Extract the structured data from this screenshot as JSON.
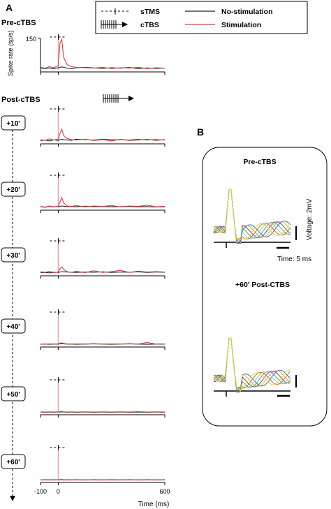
{
  "panel_a_label": "A",
  "panel_b_label": "B",
  "legend": {
    "stms_label": "sTMS",
    "ctbs_label": "cTBS",
    "no_stim_label": "No-stimulation",
    "stim_label": "Stimulation",
    "no_stim_color": "#222222",
    "stim_color": "#d0404a"
  },
  "pre_label": "Pre-cTBS",
  "post_label": "Post-cTBS",
  "ylabel": "Spike rate (sp/s)",
  "ytick": "150",
  "xtick_labels": [
    "-100",
    "0",
    "600"
  ],
  "xlabel": "Time (ms)",
  "time_boxes": [
    "+10'",
    "+20'",
    "+30'",
    "+40'",
    "+50'",
    "+60'"
  ],
  "panel_b": {
    "pre_title": "Pre-cTBS",
    "post_title": "+60' Post-CTBS",
    "voltage_label": "Voltage: 2mV",
    "time_label": "Time: 5 ms",
    "trace_colors": [
      "#2a6fb5",
      "#e8b030",
      "#7a3fa0",
      "#4ab040",
      "#8cc8e8",
      "#e06a1e",
      "#d8d840"
    ]
  },
  "chart_data": [
    {
      "type": "line",
      "title": "Pre-cTBS",
      "xlabel": "Time (ms)",
      "ylabel": "Spike rate (sp/s)",
      "xlim": [
        -100,
        600
      ],
      "ylim": [
        0,
        150
      ],
      "x": [
        -100,
        -75,
        -50,
        -25,
        0,
        10,
        20,
        30,
        50,
        75,
        100,
        150,
        200,
        250,
        300,
        350,
        400,
        450,
        500,
        550,
        600
      ],
      "series": [
        {
          "name": "No-stimulation",
          "values": [
            8,
            6,
            9,
            5,
            10,
            12,
            14,
            12,
            8,
            6,
            10,
            12,
            9,
            7,
            10,
            8,
            11,
            6,
            9,
            7,
            8
          ]
        },
        {
          "name": "Stimulation",
          "values": [
            12,
            8,
            15,
            10,
            20,
            130,
            145,
            60,
            25,
            15,
            12,
            10,
            8,
            12,
            6,
            10,
            8,
            12,
            6,
            10,
            8
          ]
        }
      ]
    },
    {
      "type": "line",
      "title": "+10'",
      "xlim": [
        -100,
        600
      ],
      "ylim": [
        0,
        150
      ],
      "x": [
        -100,
        -75,
        -50,
        -25,
        0,
        10,
        20,
        30,
        50,
        75,
        100,
        150,
        200,
        250,
        300,
        350,
        400,
        450,
        500,
        550,
        600
      ],
      "series": [
        {
          "name": "No-stimulation",
          "values": [
            5,
            8,
            4,
            9,
            6,
            10,
            12,
            10,
            8,
            7,
            12,
            10,
            8,
            12,
            9,
            10,
            8,
            11,
            9,
            10,
            8
          ]
        },
        {
          "name": "Stimulation",
          "values": [
            10,
            6,
            14,
            8,
            12,
            40,
            60,
            30,
            15,
            10,
            8,
            12,
            6,
            10,
            4,
            12,
            6,
            8,
            12,
            6,
            10
          ]
        }
      ]
    },
    {
      "type": "line",
      "title": "+20'",
      "xlim": [
        -100,
        600
      ],
      "ylim": [
        0,
        150
      ],
      "x": [
        -100,
        -75,
        -50,
        -25,
        0,
        10,
        20,
        30,
        50,
        75,
        100,
        150,
        200,
        250,
        300,
        350,
        400,
        450,
        500,
        550,
        600
      ],
      "series": [
        {
          "name": "No-stimulation",
          "values": [
            6,
            4,
            8,
            5,
            9,
            8,
            10,
            9,
            7,
            8,
            6,
            9,
            7,
            8,
            6,
            7,
            8,
            6,
            7,
            5,
            6
          ]
        },
        {
          "name": "Stimulation",
          "values": [
            8,
            5,
            10,
            6,
            8,
            30,
            50,
            25,
            10,
            8,
            12,
            6,
            10,
            8,
            12,
            6,
            10,
            8,
            14,
            6,
            8
          ]
        }
      ]
    },
    {
      "type": "line",
      "title": "+30'",
      "xlim": [
        -100,
        600
      ],
      "ylim": [
        0,
        150
      ],
      "x": [
        -100,
        -75,
        -50,
        -25,
        0,
        10,
        20,
        30,
        50,
        75,
        100,
        150,
        200,
        250,
        300,
        350,
        400,
        450,
        500,
        550,
        600
      ],
      "series": [
        {
          "name": "No-stimulation",
          "values": [
            5,
            6,
            4,
            7,
            6,
            8,
            10,
            9,
            8,
            7,
            6,
            8,
            7,
            9,
            6,
            8,
            7,
            9,
            6,
            8,
            7
          ]
        },
        {
          "name": "Stimulation",
          "values": [
            10,
            6,
            12,
            5,
            8,
            25,
            32,
            20,
            10,
            6,
            12,
            5,
            14,
            6,
            10,
            16,
            6,
            12,
            8,
            10,
            8
          ]
        }
      ]
    },
    {
      "type": "line",
      "title": "+40'",
      "xlim": [
        -100,
        600
      ],
      "ylim": [
        0,
        150
      ],
      "x": [
        -100,
        -75,
        -50,
        -25,
        0,
        10,
        20,
        30,
        50,
        75,
        100,
        150,
        200,
        250,
        300,
        350,
        400,
        450,
        500,
        550,
        600
      ],
      "series": [
        {
          "name": "No-stimulation",
          "values": [
            3,
            4,
            3,
            4,
            4,
            5,
            6,
            5,
            4,
            4,
            3,
            4,
            5,
            4,
            3,
            4,
            5,
            4,
            3,
            4,
            4
          ]
        },
        {
          "name": "Stimulation",
          "values": [
            4,
            3,
            5,
            4,
            5,
            8,
            10,
            7,
            5,
            4,
            5,
            4,
            6,
            4,
            5,
            4,
            6,
            4,
            12,
            4,
            5
          ]
        }
      ]
    },
    {
      "type": "line",
      "title": "+50'",
      "xlim": [
        -100,
        600
      ],
      "ylim": [
        0,
        150
      ],
      "x": [
        -100,
        -75,
        -50,
        -25,
        0,
        10,
        20,
        30,
        50,
        75,
        100,
        150,
        200,
        250,
        300,
        350,
        400,
        450,
        500,
        550,
        600
      ],
      "series": [
        {
          "name": "No-stimulation",
          "values": [
            3,
            2,
            3,
            2,
            3,
            3,
            4,
            3,
            2,
            3,
            2,
            3,
            2,
            3,
            2,
            3,
            2,
            3,
            2,
            3,
            2
          ]
        },
        {
          "name": "Stimulation",
          "values": [
            4,
            3,
            4,
            3,
            4,
            5,
            6,
            4,
            3,
            4,
            3,
            4,
            3,
            4,
            3,
            4,
            3,
            5,
            3,
            4,
            3
          ]
        }
      ]
    },
    {
      "type": "line",
      "title": "+60'",
      "xlim": [
        -100,
        600
      ],
      "ylim": [
        0,
        150
      ],
      "x": [
        -100,
        -75,
        -50,
        -25,
        0,
        10,
        20,
        30,
        50,
        75,
        100,
        150,
        200,
        250,
        300,
        350,
        400,
        450,
        500,
        550,
        600
      ],
      "series": [
        {
          "name": "No-stimulation",
          "values": [
            2,
            3,
            2,
            3,
            2,
            3,
            3,
            2,
            3,
            2,
            3,
            2,
            3,
            2,
            3,
            2,
            3,
            2,
            3,
            2,
            3
          ]
        },
        {
          "name": "Stimulation",
          "values": [
            3,
            2,
            3,
            2,
            3,
            4,
            5,
            3,
            2,
            3,
            2,
            3,
            2,
            3,
            2,
            3,
            2,
            3,
            2,
            3,
            2
          ]
        }
      ]
    }
  ]
}
